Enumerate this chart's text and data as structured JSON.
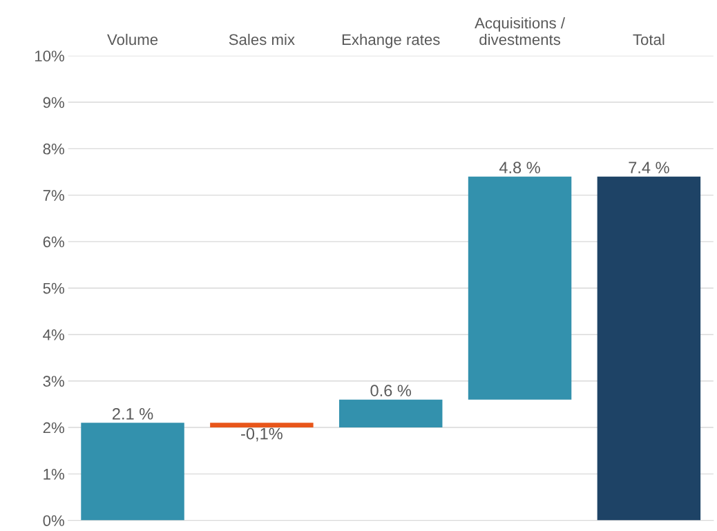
{
  "chart_data": {
    "type": "bar",
    "categories": [
      "Volume",
      "Sales mix",
      "Exhange rates",
      "Acquisitions /\ndivestments",
      "Total"
    ],
    "values": [
      2.1,
      -0.1,
      0.6,
      4.8,
      7.4
    ],
    "base": [
      0,
      2.1,
      2.0,
      2.6,
      0
    ],
    "colors": [
      "#3391ad",
      "#e8561a",
      "#3391ad",
      "#3391ad",
      "#1e4366"
    ],
    "value_labels": [
      "2.1 %",
      "-0,1%",
      "0.6 %",
      "4.8 %",
      "7.4 %"
    ],
    "ylim": [
      0,
      10
    ],
    "yticks": [
      {
        "value": 0,
        "label": "0%"
      },
      {
        "value": 1,
        "label": "1%"
      },
      {
        "value": 2,
        "label": "2%"
      },
      {
        "value": 3,
        "label": "3%"
      },
      {
        "value": 4,
        "label": "4%"
      },
      {
        "value": 5,
        "label": "5%"
      },
      {
        "value": 6,
        "label": "6%"
      },
      {
        "value": 7,
        "label": "7%"
      },
      {
        "value": 8,
        "label": "8%"
      },
      {
        "value": 9,
        "label": "9%"
      },
      {
        "value": 10,
        "label": "10%"
      }
    ],
    "grid": "y"
  }
}
